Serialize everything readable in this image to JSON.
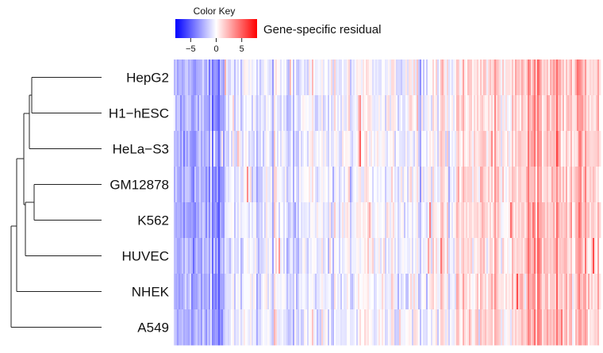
{
  "chart_data": {
    "type": "heatmap",
    "title": "",
    "xlabel": "",
    "ylabel": "",
    "rows": [
      "HepG2",
      "H1−hESC",
      "HeLa−S3",
      "GM12878",
      "K562",
      "HUVEC",
      "NHEK",
      "A549"
    ],
    "color_scale": {
      "low": "#0000ff",
      "mid": "#ffffff",
      "high": "#ff0000",
      "range": [
        -8,
        8
      ]
    },
    "color_key": {
      "title": "Color Key",
      "label": "Gene-specific residual",
      "ticks": [
        {
          "value": -5,
          "label": "−5"
        },
        {
          "value": 0,
          "label": "0"
        },
        {
          "value": 5,
          "label": "5"
        }
      ]
    },
    "column_profile": {
      "note_values_are_residuals": true,
      "segments": [
        {
          "from": 0.0,
          "to": 0.09,
          "value": -2.6
        },
        {
          "from": 0.09,
          "to": 0.11,
          "value": -3.6
        },
        {
          "from": 0.11,
          "to": 0.12,
          "value": -2.0
        },
        {
          "from": 0.12,
          "to": 0.3,
          "value": -0.7
        },
        {
          "from": 0.3,
          "to": 0.55,
          "value": -0.3
        },
        {
          "from": 0.55,
          "to": 0.66,
          "value": 0.1
        },
        {
          "from": 0.66,
          "to": 0.8,
          "value": 0.9
        },
        {
          "from": 0.8,
          "to": 0.83,
          "value": 1.4
        },
        {
          "from": 0.83,
          "to": 0.86,
          "value": 3.2
        },
        {
          "from": 0.86,
          "to": 1.0,
          "value": 1.8
        }
      ]
    },
    "dendrogram": {
      "merge_order": [
        [
          "HepG2",
          "H1−hESC"
        ],
        [
          "GM12878",
          "K562"
        ],
        [
          "(HepG2,H1−hESC)",
          "HeLa−S3"
        ],
        [
          "(GM12878,K562)",
          "HUVEC"
        ],
        [
          "((HepG2,H1−hESC),HeLa−S3)",
          "((GM12878,K562),HUVEC)"
        ],
        [
          "(...)",
          "NHEK"
        ],
        [
          "(...)",
          "A549"
        ]
      ]
    }
  }
}
